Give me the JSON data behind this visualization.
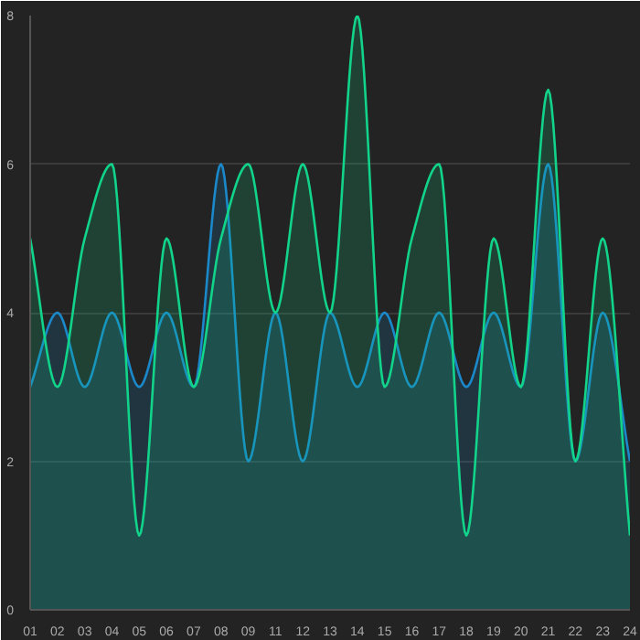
{
  "chart_data": {
    "type": "area",
    "categories": [
      "01",
      "02",
      "03",
      "04",
      "05",
      "06",
      "07",
      "08",
      "09",
      "11",
      "12",
      "13",
      "14",
      "15",
      "16",
      "17",
      "18",
      "19",
      "20",
      "21",
      "22",
      "23",
      "24"
    ],
    "series": [
      {
        "color": "#1a88c9",
        "values": [
          3,
          4,
          3,
          4,
          3,
          4,
          3,
          6,
          2,
          4,
          2,
          4,
          3,
          4,
          3,
          4,
          3,
          4,
          3,
          6,
          2,
          4,
          2
        ]
      },
      {
        "color": "#12d38a",
        "values": [
          5,
          3,
          5,
          6,
          1,
          5,
          3,
          5,
          6,
          4,
          6,
          4,
          8,
          3,
          5,
          6,
          1,
          5,
          3,
          7,
          2,
          5,
          1
        ]
      }
    ],
    "ylim": [
      0,
      8
    ],
    "yticks": [
      0,
      2,
      4,
      6,
      8
    ],
    "grid": "y"
  }
}
